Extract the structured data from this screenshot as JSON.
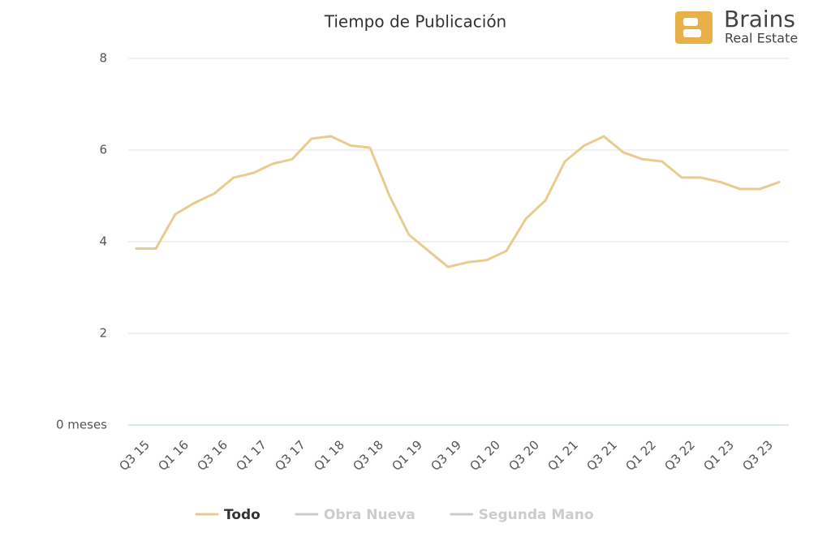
{
  "chart_data": {
    "type": "line",
    "title": "Tiempo de Publicación",
    "brand": {
      "name": "Brains",
      "tagline": "Real Estate"
    },
    "categories": [
      "Q3 15",
      null,
      "Q1 16",
      null,
      "Q3 16",
      null,
      "Q1 17",
      null,
      "Q3 17",
      null,
      "Q1 18",
      null,
      "Q3 18",
      null,
      "Q1 19",
      null,
      "Q3 19",
      null,
      "Q1 20",
      null,
      "Q3 20",
      null,
      "Q1 21",
      null,
      "Q3 21",
      null,
      "Q1 22",
      null,
      "Q3 22",
      null,
      "Q1 23",
      null,
      "Q3 23",
      null
    ],
    "series": [
      {
        "name": "Todo",
        "color": "#e8cc8f",
        "visible": true,
        "values": [
          3.85,
          3.85,
          4.6,
          4.85,
          5.05,
          5.4,
          5.5,
          5.7,
          5.8,
          6.25,
          6.3,
          6.1,
          6.05,
          5.0,
          4.15,
          3.8,
          3.45,
          3.55,
          3.6,
          3.8,
          4.5,
          4.9,
          5.75,
          6.1,
          6.3,
          5.95,
          5.8,
          5.75,
          5.4,
          5.4,
          5.3,
          5.15,
          5.15,
          5.3
        ]
      },
      {
        "name": "Obra Nueva",
        "color": "#cccccc",
        "visible": false,
        "values": [
          null,
          null,
          null,
          null,
          null,
          null,
          null,
          null,
          null,
          null,
          null,
          null,
          null,
          null,
          null,
          null,
          null,
          null,
          null,
          null,
          null,
          null,
          null,
          null,
          null,
          null,
          null,
          null,
          null,
          null,
          null,
          null,
          null,
          null
        ]
      },
      {
        "name": "Segunda Mano",
        "color": "#cccccc",
        "visible": false,
        "values": [
          null,
          null,
          null,
          null,
          null,
          null,
          null,
          null,
          null,
          null,
          null,
          null,
          null,
          null,
          null,
          null,
          null,
          null,
          null,
          null,
          null,
          null,
          null,
          null,
          null,
          null,
          null,
          null,
          null,
          null,
          null,
          null,
          null,
          null
        ]
      }
    ],
    "ylim": [
      0,
      8
    ],
    "yticks": [
      {
        "value": 0,
        "label": "0 meses"
      },
      2,
      4,
      6,
      8
    ],
    "grid": true
  }
}
